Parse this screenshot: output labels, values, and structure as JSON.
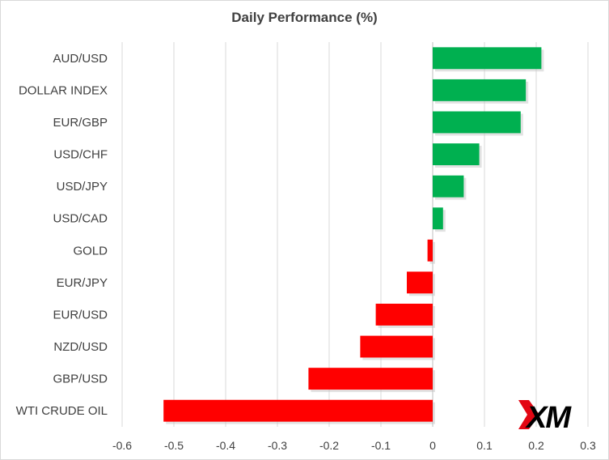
{
  "chart_data": {
    "type": "bar",
    "orientation": "horizontal",
    "title": "Daily Performance (%)",
    "categories": [
      "AUD/USD",
      "DOLLAR INDEX",
      "EUR/GBP",
      "USD/CHF",
      "USD/JPY",
      "USD/CAD",
      "GOLD",
      "EUR/JPY",
      "EUR/USD",
      "NZD/USD",
      "GBP/USD",
      "WTI CRUDE OIL"
    ],
    "values": [
      0.21,
      0.18,
      0.17,
      0.09,
      0.06,
      0.02,
      -0.01,
      -0.05,
      -0.11,
      -0.14,
      -0.24,
      -0.52
    ],
    "xlim": [
      -0.6,
      0.3
    ],
    "ticks": [
      "-0.6",
      "-0.5",
      "-0.4",
      "-0.3",
      "-0.2",
      "-0.1",
      "0",
      "0.1",
      "0.2",
      "0.3"
    ],
    "grid": "vertical",
    "colors": {
      "positive": "#00b050",
      "negative": "#ff0000",
      "grid": "#d9d9d9",
      "axis": "#bfbfbf",
      "text": "#404040"
    }
  },
  "logo": {
    "text": "XM",
    "colors": {
      "mark": "#e30613",
      "text": "#000000"
    }
  }
}
